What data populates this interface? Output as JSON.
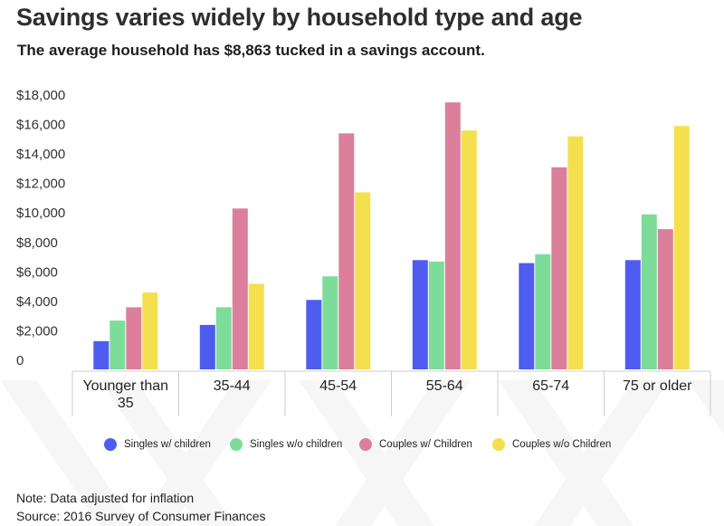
{
  "title": "Savings varies widely by household type and age",
  "subtitle": "The average household has $8,863 tucked in a savings account.",
  "chart_data": {
    "type": "bar",
    "title": "Savings varies widely by household type and age",
    "subtitle": "The average household has $8,863 tucked in a savings account.",
    "xlabel": "",
    "ylabel": "",
    "ylim": [
      0,
      18000
    ],
    "yticks": [
      0,
      2000,
      4000,
      6000,
      8000,
      10000,
      12000,
      14000,
      16000,
      18000
    ],
    "ytick_labels": [
      "0",
      "$2,000",
      "$4,000",
      "$6,000",
      "$8,000",
      "$10,000",
      "$12,000",
      "$14,000",
      "$16,000",
      "$18,000"
    ],
    "categories": [
      "Younger than 35",
      "35-44",
      "45-54",
      "55-64",
      "65-74",
      "75 or older"
    ],
    "category_lines": [
      [
        "Younger than",
        "35"
      ],
      [
        "35-44"
      ],
      [
        "45-54"
      ],
      [
        "55-64"
      ],
      [
        "65-74"
      ],
      [
        "75 or older"
      ]
    ],
    "series": [
      {
        "name": "Singles w/ children",
        "color": "#4f5cf0",
        "values": [
          1300,
          2400,
          4100,
          6800,
          6600,
          6800
        ]
      },
      {
        "name": "Singles w/o children",
        "color": "#7ddc9a",
        "values": [
          2700,
          3600,
          5700,
          6700,
          7200,
          9900
        ]
      },
      {
        "name": "Couples w/ Children",
        "color": "#db7f9c",
        "values": [
          3600,
          10300,
          15400,
          17500,
          13100,
          8900
        ]
      },
      {
        "name": "Couples w/o Children",
        "color": "#f4df4f",
        "values": [
          4600,
          5200,
          11400,
          15600,
          15200,
          15900
        ]
      }
    ],
    "grid": false,
    "legend_position": "bottom"
  },
  "legend": [
    {
      "label": "Singles w/ children",
      "color": "#4f5cf0"
    },
    {
      "label": "Singles w/o children",
      "color": "#7ddc9a"
    },
    {
      "label": "Couples w/ Children",
      "color": "#db7f9c"
    },
    {
      "label": "Couples w/o Children",
      "color": "#f4df4f"
    }
  ],
  "footer": {
    "note": "Note: Data adjusted for inflation",
    "source": "Source: 2016 Survey of Consumer Finances"
  }
}
